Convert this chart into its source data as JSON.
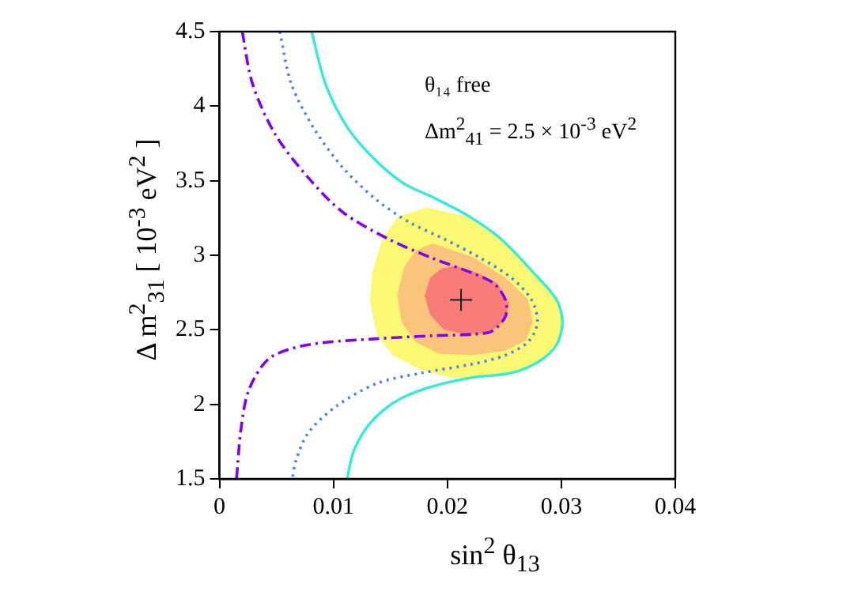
{
  "chart_data": {
    "type": "line",
    "xlabel": "sin$^{2}$ θ$_{13}$",
    "ylabel": "Δ m$^{2}$$_{31}$ [ 10$^{-3}$ eV$^{2}$ ]",
    "annotations": [
      "θ₁₄ free",
      "Δm$^{2}$$_{41}$ = 2.5 × 10$^{-3}$ eV$^{2}$"
    ],
    "xlim": [
      0,
      0.04
    ],
    "xticks": [
      0,
      0.01,
      0.02,
      0.03,
      0.04
    ],
    "ylim": [
      1.5,
      4.5
    ],
    "yticks": [
      1.5,
      2,
      2.5,
      3,
      3.5,
      4,
      4.5
    ],
    "grid": false,
    "legend": false,
    "series": [
      {
        "type": "area",
        "color": "#fbf874",
        "x": [
          0.0182,
          0.0217,
          0.0247,
          0.0276,
          0.0296,
          0.0301,
          0.0296,
          0.0281,
          0.0256,
          0.0222,
          0.0202,
          0.0177,
          0.0152,
          0.0138,
          0.0132,
          0.0134,
          0.0143,
          0.0157,
          0.0182
        ],
        "values": [
          3.32,
          3.26,
          3.11,
          2.88,
          2.7,
          2.55,
          2.4,
          2.29,
          2.21,
          2.18,
          2.18,
          2.23,
          2.33,
          2.47,
          2.7,
          2.88,
          3.11,
          3.26,
          3.32
        ]
      },
      {
        "type": "area",
        "color": "#fbc47b",
        "x": [
          0.0187,
          0.0222,
          0.0251,
          0.0271,
          0.0275,
          0.0269,
          0.0251,
          0.0222,
          0.0192,
          0.0172,
          0.016,
          0.0156,
          0.0162,
          0.0172,
          0.0187
        ],
        "values": [
          3.08,
          2.99,
          2.85,
          2.7,
          2.55,
          2.43,
          2.36,
          2.33,
          2.34,
          2.42,
          2.55,
          2.73,
          2.92,
          3.03,
          3.08
        ]
      },
      {
        "type": "area",
        "color": "#f87c78",
        "x": [
          0.0207,
          0.0227,
          0.0244,
          0.0254,
          0.0251,
          0.0237,
          0.0217,
          0.0197,
          0.0185,
          0.018,
          0.0185,
          0.0195,
          0.0207
        ],
        "values": [
          2.93,
          2.88,
          2.81,
          2.68,
          2.57,
          2.48,
          2.47,
          2.5,
          2.6,
          2.73,
          2.85,
          2.91,
          2.93
        ]
      },
      {
        "type": "line",
        "color": "#40e8d8",
        "line_style": "solid",
        "x": [
          0.0081,
          0.0093,
          0.0113,
          0.0138,
          0.0162,
          0.0187,
          0.0217,
          0.0247,
          0.0276,
          0.0296,
          0.0301,
          0.0296,
          0.0281,
          0.0256,
          0.0222,
          0.0187,
          0.0157,
          0.0133,
          0.0118,
          0.0112
        ],
        "values": [
          4.5,
          4.15,
          3.85,
          3.63,
          3.48,
          3.39,
          3.27,
          3.11,
          2.88,
          2.7,
          2.55,
          2.4,
          2.29,
          2.21,
          2.18,
          2.12,
          2.03,
          1.88,
          1.69,
          1.5
        ]
      },
      {
        "type": "line",
        "color": "#4a86e8",
        "line_style": "dotted",
        "x": [
          0.0053,
          0.0063,
          0.0083,
          0.0108,
          0.0138,
          0.0167,
          0.0197,
          0.0227,
          0.0256,
          0.0274,
          0.0279,
          0.0271,
          0.0251,
          0.0222,
          0.0177,
          0.0138,
          0.0103,
          0.0078,
          0.0067,
          0.0064
        ],
        "values": [
          4.5,
          4.15,
          3.85,
          3.59,
          3.37,
          3.22,
          3.11,
          2.99,
          2.85,
          2.7,
          2.55,
          2.42,
          2.33,
          2.27,
          2.21,
          2.14,
          1.99,
          1.81,
          1.62,
          1.5
        ]
      },
      {
        "type": "line",
        "color": "#8000f0",
        "line_style": "dashed",
        "x": [
          0.002,
          0.0029,
          0.0049,
          0.0078,
          0.0108,
          0.0148,
          0.0187,
          0.0222,
          0.0241,
          0.0251,
          0.0251,
          0.0239,
          0.0222,
          0.0187,
          0.0138,
          0.0078,
          0.0044,
          0.0026,
          0.0019,
          0.0015
        ],
        "values": [
          4.5,
          4.15,
          3.81,
          3.52,
          3.29,
          3.11,
          2.98,
          2.88,
          2.81,
          2.7,
          2.59,
          2.49,
          2.47,
          2.46,
          2.44,
          2.4,
          2.31,
          2.1,
          1.84,
          1.5
        ]
      },
      {
        "type": "scatter",
        "color": "#202020",
        "marker": "cross",
        "x": [
          0.0212
        ],
        "values": [
          2.7
        ]
      }
    ]
  }
}
